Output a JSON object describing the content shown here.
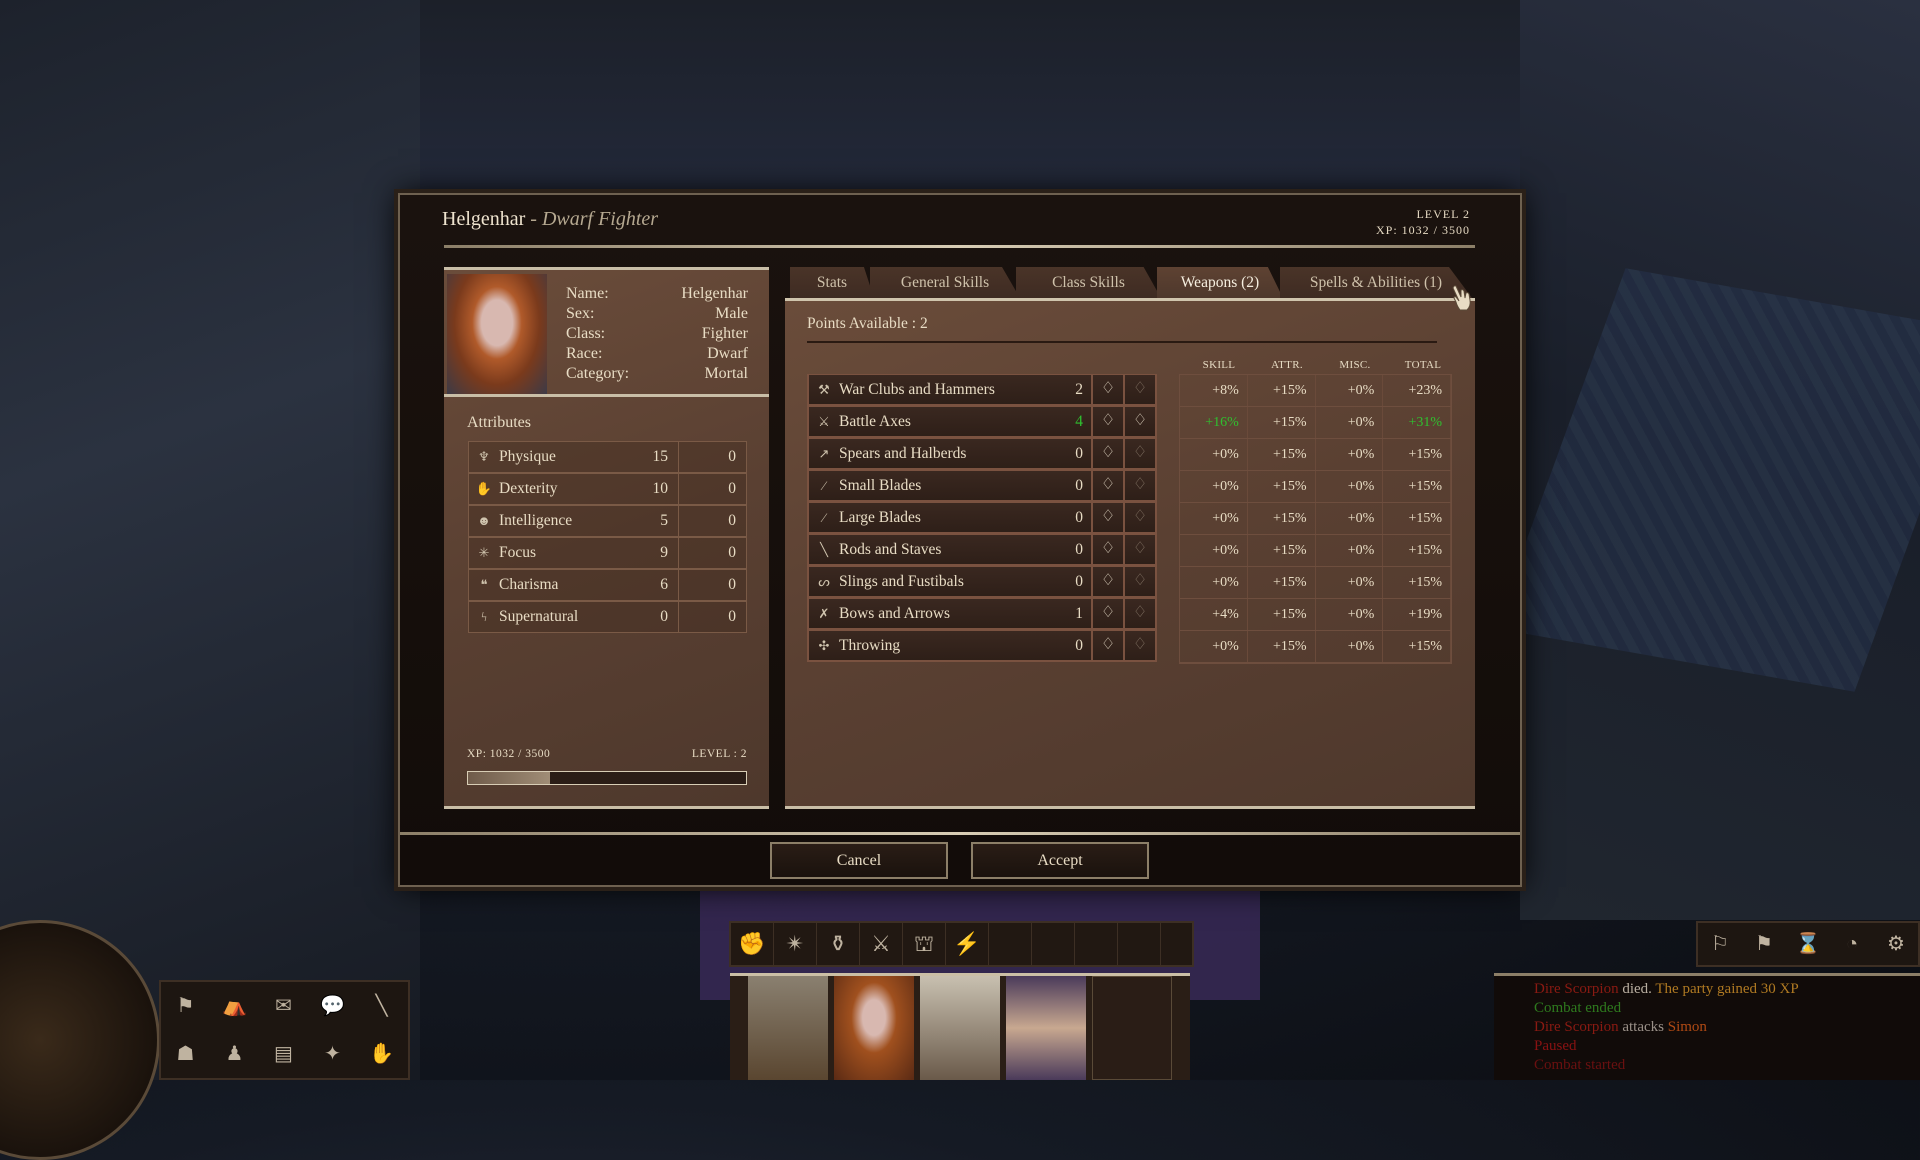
{
  "dialog": {
    "name": "Helgenhar",
    "subtitle": "- Dwarf Fighter",
    "level": "LEVEL 2",
    "xp": "XP: 1032 / 3500"
  },
  "character": {
    "info": [
      {
        "label": "Name:",
        "value": "Helgenhar"
      },
      {
        "label": "Sex:",
        "value": "Male"
      },
      {
        "label": "Class:",
        "value": "Fighter"
      },
      {
        "label": "Race:",
        "value": "Dwarf"
      },
      {
        "label": "Category:",
        "value": "Mortal"
      }
    ],
    "attributes_label": "Attributes",
    "attributes": [
      {
        "icon": "physique-icon",
        "glyph": "♆",
        "name": "Physique",
        "value": "15",
        "bonus": "0"
      },
      {
        "icon": "dexterity-icon",
        "glyph": "✋",
        "name": "Dexterity",
        "value": "10",
        "bonus": "0"
      },
      {
        "icon": "intelligence-icon",
        "glyph": "☻",
        "name": "Intelligence",
        "value": "5",
        "bonus": "0"
      },
      {
        "icon": "focus-icon",
        "glyph": "✳",
        "name": "Focus",
        "value": "9",
        "bonus": "0"
      },
      {
        "icon": "charisma-icon",
        "glyph": "❝",
        "name": "Charisma",
        "value": "6",
        "bonus": "0"
      },
      {
        "icon": "supernatural-icon",
        "glyph": "ϟ",
        "name": "Supernatural",
        "value": "0",
        "bonus": "0"
      }
    ],
    "xp_label": "XP: 1032 / 3500",
    "level_label": "LEVEL : 2",
    "xp_progress": 0.295
  },
  "tabs": [
    {
      "label": "Stats"
    },
    {
      "label": "General Skills"
    },
    {
      "label": "Class Skills"
    },
    {
      "label": "Weapons (2)",
      "active": true
    },
    {
      "label": "Spells & Abilities (1)"
    }
  ],
  "weapons": {
    "points_available": "Points Available : 2",
    "columns": [
      "SKILL",
      "ATTR.",
      "MISC.",
      "TOTAL"
    ],
    "rows": [
      {
        "icon": "hammer-icon",
        "glyph": "⚒",
        "name": "War Clubs and Hammers",
        "rank": "2",
        "skill": "+8%",
        "attr": "+15%",
        "misc": "+0%",
        "total": "+23%",
        "minus_active": false
      },
      {
        "icon": "axe-icon",
        "glyph": "⚔",
        "name": "Battle Axes",
        "rank": "4",
        "skill": "+16%",
        "attr": "+15%",
        "misc": "+0%",
        "total": "+31%",
        "highlight": true,
        "minus_active": true
      },
      {
        "icon": "spear-icon",
        "glyph": "↗",
        "name": "Spears and Halberds",
        "rank": "0",
        "skill": "+0%",
        "attr": "+15%",
        "misc": "+0%",
        "total": "+15%"
      },
      {
        "icon": "dagger-icon",
        "glyph": "⁄",
        "name": "Small Blades",
        "rank": "0",
        "skill": "+0%",
        "attr": "+15%",
        "misc": "+0%",
        "total": "+15%"
      },
      {
        "icon": "sword-icon",
        "glyph": "⁄",
        "name": "Large Blades",
        "rank": "0",
        "skill": "+0%",
        "attr": "+15%",
        "misc": "+0%",
        "total": "+15%"
      },
      {
        "icon": "staff-icon",
        "glyph": "╲",
        "name": "Rods and Staves",
        "rank": "0",
        "skill": "+0%",
        "attr": "+15%",
        "misc": "+0%",
        "total": "+15%"
      },
      {
        "icon": "sling-icon",
        "glyph": "ᔕ",
        "name": "Slings and Fustibals",
        "rank": "0",
        "skill": "+0%",
        "attr": "+15%",
        "misc": "+0%",
        "total": "+15%"
      },
      {
        "icon": "bow-icon",
        "glyph": "✗",
        "name": "Bows and Arrows",
        "rank": "1",
        "skill": "+4%",
        "attr": "+15%",
        "misc": "+0%",
        "total": "+19%"
      },
      {
        "icon": "throwing-icon",
        "glyph": "✣",
        "name": "Throwing",
        "rank": "0",
        "skill": "+0%",
        "attr": "+15%",
        "misc": "+0%",
        "total": "+15%"
      }
    ]
  },
  "buttons": {
    "cancel": "Cancel",
    "accept": "Accept"
  },
  "combat_log": [
    [
      {
        "t": "Dire Scorpion",
        "c": "#8a1a12"
      },
      {
        "t": " died. ",
        "c": "#b8aea0"
      },
      {
        "t": "The party gained 30 XP",
        "c": "#b07a22"
      }
    ],
    [
      {
        "t": "Combat ended",
        "c": "#2e7a1e"
      }
    ],
    [
      {
        "t": "Dire Scorpion",
        "c": "#8a1a12"
      },
      {
        "t": " attacks ",
        "c": "#9a9088"
      },
      {
        "t": "Simon",
        "c": "#b04a14"
      }
    ],
    [
      {
        "t": "Paused",
        "c": "#8a1212"
      }
    ],
    [
      {
        "t": "Combat started",
        "c": "#6a1010"
      }
    ]
  ],
  "colors": {
    "highlight": "#2fc02f",
    "panel": "#5a4032"
  }
}
